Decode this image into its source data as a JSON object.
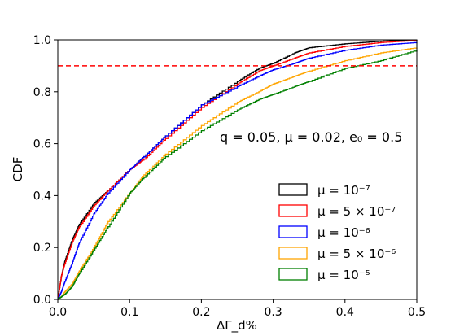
{
  "chart_data": {
    "type": "line",
    "xlabel": "ΔΓ_d%",
    "ylabel": "CDF",
    "xlim": [
      0.0,
      0.5
    ],
    "ylim": [
      0.0,
      1.0
    ],
    "x_ticks": [
      "0.0",
      "0.1",
      "0.2",
      "0.3",
      "0.4",
      "0.5"
    ],
    "y_ticks": [
      "0.0",
      "0.2",
      "0.4",
      "0.6",
      "0.8",
      "1.0"
    ],
    "annotation": "q = 0.05, μ = 0.02, e₀ = 0.5",
    "threshold_line": {
      "y": 0.9,
      "color": "#ff0000",
      "style": "dashed"
    },
    "legend_position": "lower-right",
    "series": [
      {
        "name": "μ = 10⁻⁷",
        "color": "#000000",
        "x": [
          0.0,
          0.005,
          0.01,
          0.02,
          0.03,
          0.05,
          0.07,
          0.1,
          0.12,
          0.15,
          0.2,
          0.25,
          0.28,
          0.3,
          0.33,
          0.35,
          0.4,
          0.45,
          0.5
        ],
        "y": [
          0.0,
          0.09,
          0.15,
          0.23,
          0.29,
          0.37,
          0.42,
          0.5,
          0.55,
          0.63,
          0.75,
          0.84,
          0.89,
          0.91,
          0.95,
          0.97,
          0.985,
          0.995,
          1.0
        ]
      },
      {
        "name": "μ = 5 × 10⁻⁷",
        "color": "#ff0000",
        "x": [
          0.0,
          0.005,
          0.01,
          0.02,
          0.03,
          0.05,
          0.07,
          0.1,
          0.12,
          0.15,
          0.2,
          0.25,
          0.28,
          0.3,
          0.33,
          0.35,
          0.4,
          0.45,
          0.5
        ],
        "y": [
          0.0,
          0.09,
          0.14,
          0.22,
          0.28,
          0.36,
          0.42,
          0.5,
          0.54,
          0.62,
          0.74,
          0.83,
          0.88,
          0.9,
          0.93,
          0.95,
          0.975,
          0.99,
          0.998
        ]
      },
      {
        "name": "μ = 10⁻⁶",
        "color": "#0000ff",
        "x": [
          0.0,
          0.005,
          0.01,
          0.02,
          0.03,
          0.05,
          0.07,
          0.1,
          0.12,
          0.15,
          0.2,
          0.25,
          0.28,
          0.3,
          0.33,
          0.35,
          0.4,
          0.45,
          0.5
        ],
        "y": [
          0.0,
          0.03,
          0.07,
          0.14,
          0.22,
          0.33,
          0.41,
          0.5,
          0.55,
          0.63,
          0.75,
          0.82,
          0.86,
          0.885,
          0.91,
          0.93,
          0.96,
          0.98,
          0.99
        ]
      },
      {
        "name": "μ = 5 × 10⁻⁶",
        "color": "#ffa500",
        "x": [
          0.0,
          0.005,
          0.01,
          0.02,
          0.03,
          0.05,
          0.07,
          0.1,
          0.12,
          0.15,
          0.2,
          0.25,
          0.28,
          0.3,
          0.33,
          0.35,
          0.4,
          0.45,
          0.5
        ],
        "y": [
          0.0,
          0.01,
          0.03,
          0.06,
          0.11,
          0.2,
          0.3,
          0.41,
          0.48,
          0.56,
          0.67,
          0.76,
          0.8,
          0.83,
          0.86,
          0.88,
          0.92,
          0.95,
          0.97
        ]
      },
      {
        "name": "μ = 10⁻⁵",
        "color": "#008000",
        "x": [
          0.0,
          0.005,
          0.01,
          0.02,
          0.03,
          0.05,
          0.07,
          0.1,
          0.12,
          0.15,
          0.2,
          0.25,
          0.28,
          0.3,
          0.33,
          0.35,
          0.4,
          0.45,
          0.5
        ],
        "y": [
          0.0,
          0.01,
          0.02,
          0.05,
          0.1,
          0.19,
          0.28,
          0.41,
          0.47,
          0.55,
          0.65,
          0.73,
          0.77,
          0.79,
          0.82,
          0.84,
          0.89,
          0.92,
          0.96
        ]
      }
    ]
  }
}
